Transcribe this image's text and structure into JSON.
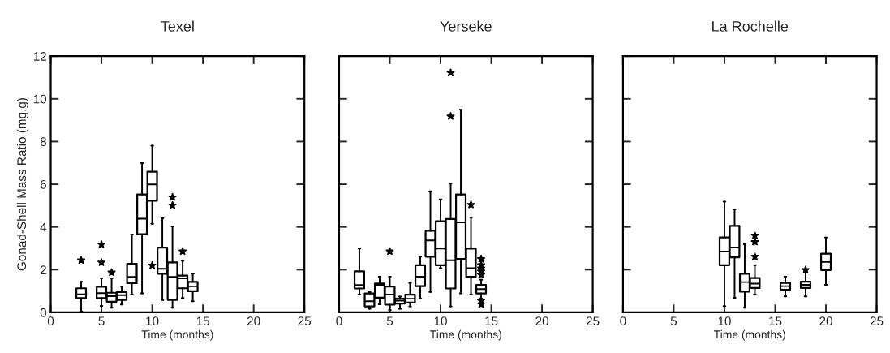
{
  "chart_data": [
    {
      "type": "box",
      "title": "Texel",
      "xlabel": "Time (months)",
      "ylabel": "Gonad-Shell Mass Ratio (mg.g)",
      "xlim": [
        0,
        25
      ],
      "xticks": [
        0,
        5,
        10,
        15,
        20,
        25
      ],
      "ylim": [
        0,
        12
      ],
      "yticks": [
        0,
        2,
        4,
        6,
        8,
        10,
        12
      ],
      "grid": false,
      "marker": "star",
      "x": [
        3,
        5,
        6,
        7,
        8,
        9,
        10,
        11,
        12,
        13,
        14
      ],
      "boxes": [
        {
          "low": 0.05,
          "q1": 0.67,
          "median": 0.85,
          "q3": 1.13,
          "high": 1.43,
          "outliers": [
            2.44
          ]
        },
        {
          "low": 0.3,
          "q1": 0.67,
          "median": 0.9,
          "q3": 1.2,
          "high": 1.6,
          "outliers": [
            2.34,
            3.18
          ]
        },
        {
          "low": 0.22,
          "q1": 0.5,
          "median": 0.76,
          "q3": 0.92,
          "high": 1.6,
          "outliers": [
            1.87
          ]
        },
        {
          "low": 0.37,
          "q1": 0.58,
          "median": 0.81,
          "q3": 0.95,
          "high": 1.22
        },
        {
          "low": 0.84,
          "q1": 1.37,
          "median": 1.66,
          "q3": 2.27,
          "high": 3.65
        },
        {
          "low": 0.89,
          "q1": 3.66,
          "median": 4.39,
          "q3": 5.52,
          "high": 6.99
        },
        {
          "low": 4.15,
          "q1": 5.23,
          "median": 5.99,
          "q3": 6.59,
          "high": 7.81,
          "outliers": [
            2.2
          ]
        },
        {
          "low": 0.58,
          "q1": 1.81,
          "median": 2.04,
          "q3": 3.03,
          "high": 4.41
        },
        {
          "low": 0.22,
          "q1": 0.58,
          "median": 1.66,
          "q3": 2.34,
          "high": 4.03,
          "outliers": [
            5.01,
            5.39
          ]
        },
        {
          "low": 0.67,
          "q1": 1.13,
          "median": 1.59,
          "q3": 1.72,
          "high": 2.42,
          "outliers": [
            2.86
          ]
        },
        {
          "low": 0.52,
          "q1": 0.99,
          "median": 1.22,
          "q3": 1.43,
          "high": 1.81
        }
      ]
    },
    {
      "type": "box",
      "title": "Yerseke",
      "xlabel": "Time (months)",
      "xlim": [
        0,
        25
      ],
      "xticks": [
        0,
        5,
        10,
        15,
        20,
        25
      ],
      "ylim": [
        0,
        12
      ],
      "yticks": [
        0,
        2,
        4,
        6,
        8,
        10,
        12
      ],
      "tick_labels": "x",
      "grid": false,
      "marker": "star",
      "x": [
        2,
        3,
        4,
        5,
        6,
        7,
        8,
        9,
        10,
        11,
        12,
        13,
        14
      ],
      "boxes": [
        {
          "low": 0.84,
          "q1": 1.12,
          "median": 1.28,
          "q3": 1.92,
          "high": 2.99
        },
        {
          "low": 0.17,
          "q1": 0.28,
          "median": 0.52,
          "q3": 0.89,
          "high": 0.95
        },
        {
          "low": 0.38,
          "q1": 0.69,
          "median": 1.29,
          "q3": 1.35,
          "high": 1.67
        },
        {
          "low": 0.1,
          "q1": 0.36,
          "median": 0.84,
          "q3": 1.21,
          "high": 1.67,
          "outliers": [
            2.86
          ]
        },
        {
          "low": 0.17,
          "q1": 0.41,
          "median": 0.55,
          "q3": 0.64,
          "high": 0.74
        },
        {
          "low": 0.28,
          "q1": 0.46,
          "median": 0.64,
          "q3": 0.83,
          "high": 1.38
        },
        {
          "low": 0.65,
          "q1": 1.23,
          "median": 1.67,
          "q3": 2.21,
          "high": 2.61
        },
        {
          "low": 0.96,
          "q1": 2.61,
          "median": 3.37,
          "q3": 3.82,
          "high": 5.67
        },
        {
          "low": 2.07,
          "q1": 2.21,
          "median": 2.99,
          "q3": 4.27,
          "high": 5.29
        },
        {
          "low": 0.28,
          "q1": 1.12,
          "median": 2.44,
          "q3": 4.37,
          "high": 6.04,
          "outliers": [
            9.18,
            11.22
          ]
        },
        {
          "low": 0.89,
          "q1": 2.5,
          "median": 4.22,
          "q3": 5.52,
          "high": 9.49
        },
        {
          "low": 0.84,
          "q1": 1.67,
          "median": 2.07,
          "q3": 2.99,
          "high": 4.45,
          "outliers": [
            5.04
          ]
        },
        {
          "low": 0.65,
          "q1": 0.89,
          "median": 1.09,
          "q3": 1.29,
          "high": 1.53,
          "outliers": [
            0.38,
            0.55,
            1.76,
            1.92,
            2.06,
            2.21,
            2.5
          ]
        }
      ]
    },
    {
      "type": "box",
      "title": "La Rochelle",
      "xlabel": "Time (months)",
      "xlim": [
        0,
        25
      ],
      "xticks": [
        0,
        5,
        10,
        15,
        20,
        25
      ],
      "ylim": [
        0,
        12
      ],
      "yticks": [
        0,
        2,
        4,
        6,
        8,
        10,
        12
      ],
      "tick_labels": "x",
      "grid": false,
      "marker": "star",
      "x": [
        10,
        11,
        12,
        13,
        16,
        18,
        20
      ],
      "boxes": [
        {
          "low": 0.29,
          "q1": 2.21,
          "median": 2.85,
          "q3": 3.51,
          "high": 5.19
        },
        {
          "low": 0.68,
          "q1": 2.58,
          "median": 3.04,
          "q3": 4.05,
          "high": 4.82
        },
        {
          "low": 0.22,
          "q1": 0.97,
          "median": 1.42,
          "q3": 1.81,
          "high": 3.19
        },
        {
          "low": 0.84,
          "q1": 1.14,
          "median": 1.35,
          "q3": 1.61,
          "high": 2.21,
          "outliers": [
            2.61,
            3.3,
            3.6
          ]
        },
        {
          "low": 0.75,
          "q1": 1.06,
          "median": 1.23,
          "q3": 1.38,
          "high": 1.67
        },
        {
          "low": 0.75,
          "q1": 1.14,
          "median": 1.29,
          "q3": 1.44,
          "high": 1.87,
          "outliers": [
            1.99
          ]
        },
        {
          "low": 1.29,
          "q1": 1.98,
          "median": 2.36,
          "q3": 2.75,
          "high": 3.51
        }
      ]
    }
  ]
}
